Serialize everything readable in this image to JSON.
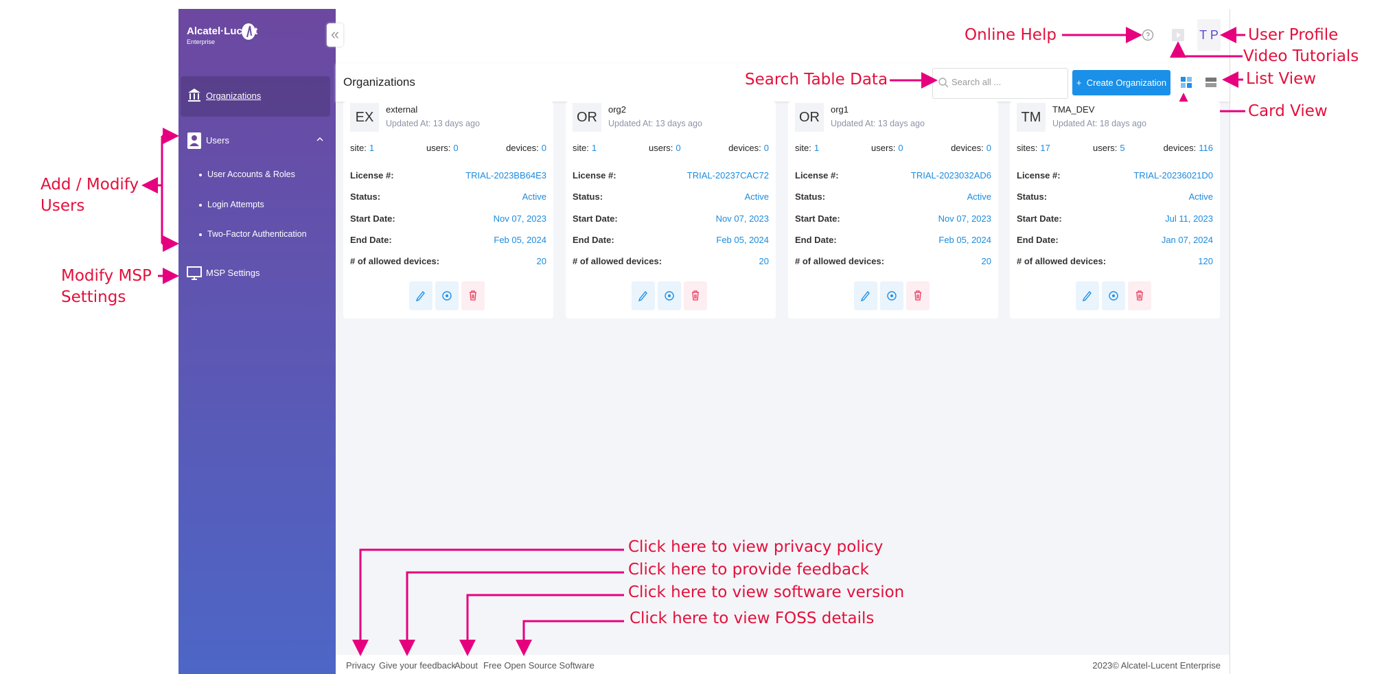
{
  "sidebar": {
    "logo": "Alcatel·Lucent",
    "logo_sub": "Enterprise",
    "menu": [
      {
        "label": "Organizations"
      },
      {
        "label": "Users",
        "children": [
          "User Accounts & Roles",
          "Login Attempts",
          "Two-Factor Authentication"
        ]
      },
      {
        "label": "MSP Settings"
      }
    ]
  },
  "header": {
    "user_initials": "T P",
    "page_title": "Organizations",
    "search_placeholder": "Search all ...",
    "create_button": "+  Create Organization"
  },
  "cards": [
    {
      "initials": "EX",
      "name": "external",
      "updated": "Updated At: 13 days ago",
      "stats": [
        {
          "label": "site:",
          "value": "1"
        },
        {
          "label": "users:",
          "value": "0"
        },
        {
          "label": "devices:",
          "value": "0"
        }
      ],
      "fields": [
        {
          "label": "License #:",
          "value": "TRIAL-2023BB64E3"
        },
        {
          "label": "Status:",
          "value": "Active"
        },
        {
          "label": "Start Date:",
          "value": "Nov 07, 2023"
        },
        {
          "label": "End Date:",
          "value": "Feb 05, 2024"
        },
        {
          "label": "# of allowed devices:",
          "value": "20"
        }
      ]
    },
    {
      "initials": "OR",
      "name": "org2",
      "updated": "Updated At: 13 days ago",
      "stats": [
        {
          "label": "site:",
          "value": "1"
        },
        {
          "label": "users:",
          "value": "0"
        },
        {
          "label": "devices:",
          "value": "0"
        }
      ],
      "fields": [
        {
          "label": "License #:",
          "value": "TRIAL-20237CAC72"
        },
        {
          "label": "Status:",
          "value": "Active"
        },
        {
          "label": "Start Date:",
          "value": "Nov 07, 2023"
        },
        {
          "label": "End Date:",
          "value": "Feb 05, 2024"
        },
        {
          "label": "# of allowed devices:",
          "value": "20"
        }
      ]
    },
    {
      "initials": "OR",
      "name": "org1",
      "updated": "Updated At: 13 days ago",
      "stats": [
        {
          "label": "site:",
          "value": "1"
        },
        {
          "label": "users:",
          "value": "0"
        },
        {
          "label": "devices:",
          "value": "0"
        }
      ],
      "fields": [
        {
          "label": "License #:",
          "value": "TRIAL-2023032AD6"
        },
        {
          "label": "Status:",
          "value": "Active"
        },
        {
          "label": "Start Date:",
          "value": "Nov 07, 2023"
        },
        {
          "label": "End Date:",
          "value": "Feb 05, 2024"
        },
        {
          "label": "# of allowed devices:",
          "value": "20"
        }
      ]
    },
    {
      "initials": "TM",
      "name": "TMA_DEV",
      "updated": "Updated At: 18 days ago",
      "stats": [
        {
          "label": "sites:",
          "value": "17"
        },
        {
          "label": "users:",
          "value": "5"
        },
        {
          "label": "devices:",
          "value": "116"
        }
      ],
      "fields": [
        {
          "label": "License #:",
          "value": "TRIAL-20236021D0"
        },
        {
          "label": "Status:",
          "value": "Active"
        },
        {
          "label": "Start Date:",
          "value": "Jul 11, 2023"
        },
        {
          "label": "End Date:",
          "value": "Jan 07, 2024"
        },
        {
          "label": "# of allowed devices:",
          "value": "120"
        }
      ]
    }
  ],
  "footer": {
    "links": [
      "Privacy",
      "Give your feedback",
      "About",
      "Free Open Source Software"
    ],
    "copyright": "2023© Alcatel-Lucent Enterprise"
  },
  "annotations": {
    "online_help": "Online Help",
    "user_profile": "User Profile",
    "video_tutorials": "Video Tutorials",
    "search": "Search Table Data",
    "list_view": "List View",
    "card_view": "Card View",
    "users": "Add / Modify Users",
    "msp": "Modify MSP Settings",
    "privacy": "Click here to view privacy policy",
    "feedback": "Click here to provide feedback",
    "about": "Click here to view software version",
    "foss": "Click here to view FOSS details"
  }
}
